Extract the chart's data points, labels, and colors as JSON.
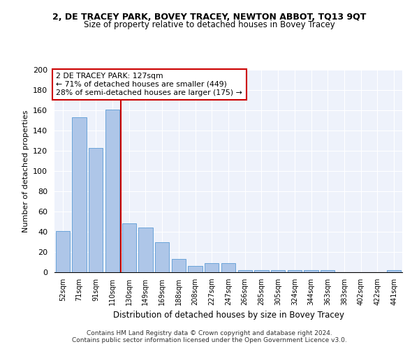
{
  "title_line1": "2, DE TRACEY PARK, BOVEY TRACEY, NEWTON ABBOT, TQ13 9QT",
  "title_line2": "Size of property relative to detached houses in Bovey Tracey",
  "xlabel": "Distribution of detached houses by size in Bovey Tracey",
  "ylabel": "Number of detached properties",
  "categories": [
    "52sqm",
    "71sqm",
    "91sqm",
    "110sqm",
    "130sqm",
    "149sqm",
    "169sqm",
    "188sqm",
    "208sqm",
    "227sqm",
    "247sqm",
    "266sqm",
    "285sqm",
    "305sqm",
    "324sqm",
    "344sqm",
    "363sqm",
    "383sqm",
    "402sqm",
    "422sqm",
    "441sqm"
  ],
  "values": [
    41,
    153,
    123,
    161,
    48,
    44,
    30,
    13,
    6,
    9,
    9,
    2,
    2,
    2,
    2,
    2,
    2,
    0,
    0,
    0,
    2
  ],
  "bar_color": "#aec6e8",
  "bar_edge_color": "#5b9bd5",
  "annotation_line1": "2 DE TRACEY PARK: 127sqm",
  "annotation_line2": "← 71% of detached houses are smaller (449)",
  "annotation_line3": "28% of semi-detached houses are larger (175) →",
  "annotation_box_color": "#ffffff",
  "annotation_box_edge": "#cc0000",
  "ref_line_color": "#cc0000",
  "ylim": [
    0,
    200
  ],
  "yticks": [
    0,
    20,
    40,
    60,
    80,
    100,
    120,
    140,
    160,
    180,
    200
  ],
  "footer_line1": "Contains HM Land Registry data © Crown copyright and database right 2024.",
  "footer_line2": "Contains public sector information licensed under the Open Government Licence v3.0.",
  "bg_color": "#eef2fb"
}
